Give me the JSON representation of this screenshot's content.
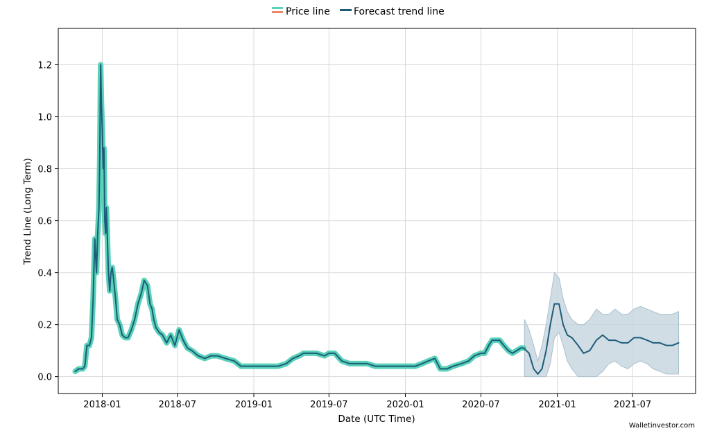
{
  "colors": {
    "price": "#59d2b8",
    "price_legend_top": "#59d2b8",
    "price_legend_bottom": "#e8896a",
    "trend": "#1d5b79",
    "band": "#c5d5df",
    "band_edge": "#a9bfcd"
  },
  "legend": {
    "price_label": "Price line",
    "trend_label": "Forecast trend line",
    "placement": "top-center"
  },
  "watermark": "Walletinvestor.com",
  "chart_data": {
    "type": "line",
    "title": "",
    "xlabel": "Date (UTC Time)",
    "ylabel": "Trend Line (Long Term)",
    "xlim": [
      "2017-09-17",
      "2021-11-30"
    ],
    "ylim": [
      -0.065,
      1.34
    ],
    "grid": true,
    "x_ticks": [
      "2018-01-01",
      "2018-07-01",
      "2019-01-01",
      "2019-07-01",
      "2020-01-01",
      "2020-07-01",
      "2021-01-01",
      "2021-07-01"
    ],
    "x_tick_labels": [
      "2018-01",
      "2018-07",
      "2019-01",
      "2019-07",
      "2020-01",
      "2020-07",
      "2021-01",
      "2021-07"
    ],
    "y_ticks": [
      0.0,
      0.2,
      0.4,
      0.6,
      0.8,
      1.0,
      1.2
    ],
    "y_tick_labels": [
      "0.0",
      "0.2",
      "0.4",
      "0.6",
      "0.8",
      "1.0",
      "1.2"
    ],
    "series": [
      {
        "name": "Price line",
        "x": [
          "2017-10-28",
          "2017-11-05",
          "2017-11-15",
          "2017-11-20",
          "2017-11-25",
          "2017-12-01",
          "2017-12-06",
          "2017-12-10",
          "2017-12-14",
          "2017-12-18",
          "2017-12-21",
          "2017-12-24",
          "2017-12-26",
          "2017-12-28",
          "2017-12-30",
          "2018-01-01",
          "2018-01-03",
          "2018-01-05",
          "2018-01-07",
          "2018-01-09",
          "2018-01-11",
          "2018-01-13",
          "2018-01-16",
          "2018-01-19",
          "2018-01-22",
          "2018-01-25",
          "2018-01-28",
          "2018-02-02",
          "2018-02-06",
          "2018-02-12",
          "2018-02-18",
          "2018-02-25",
          "2018-03-04",
          "2018-03-12",
          "2018-03-20",
          "2018-03-28",
          "2018-04-05",
          "2018-04-12",
          "2018-04-20",
          "2018-04-26",
          "2018-05-01",
          "2018-05-05",
          "2018-05-10",
          "2018-05-18",
          "2018-05-26",
          "2018-06-05",
          "2018-06-15",
          "2018-06-25",
          "2018-07-05",
          "2018-07-15",
          "2018-07-25",
          "2018-08-05",
          "2018-08-20",
          "2018-09-05",
          "2018-09-20",
          "2018-10-05",
          "2018-10-25",
          "2018-11-15",
          "2018-12-01",
          "2018-12-15",
          "2019-01-01",
          "2019-01-20",
          "2019-02-10",
          "2019-03-01",
          "2019-03-20",
          "2019-04-05",
          "2019-04-20",
          "2019-05-01",
          "2019-05-15",
          "2019-06-01",
          "2019-06-20",
          "2019-07-01",
          "2019-07-15",
          "2019-08-01",
          "2019-08-20",
          "2019-09-10",
          "2019-10-01",
          "2019-10-20",
          "2019-11-10",
          "2019-12-01",
          "2019-12-20",
          "2020-01-10",
          "2020-01-25",
          "2020-02-10",
          "2020-02-25",
          "2020-03-12",
          "2020-03-25",
          "2020-04-10",
          "2020-04-25",
          "2020-05-15",
          "2020-06-01",
          "2020-06-15",
          "2020-07-01",
          "2020-07-10",
          "2020-07-20",
          "2020-07-28",
          "2020-08-05",
          "2020-08-15",
          "2020-08-25",
          "2020-09-05",
          "2020-09-15",
          "2020-09-25",
          "2020-10-05",
          "2020-10-12"
        ],
        "y": [
          0.02,
          0.03,
          0.03,
          0.04,
          0.12,
          0.12,
          0.15,
          0.3,
          0.53,
          0.4,
          0.55,
          0.65,
          0.85,
          1.2,
          1.05,
          0.95,
          0.8,
          0.88,
          0.6,
          0.55,
          0.65,
          0.55,
          0.4,
          0.33,
          0.4,
          0.42,
          0.38,
          0.3,
          0.22,
          0.2,
          0.16,
          0.15,
          0.15,
          0.18,
          0.22,
          0.28,
          0.32,
          0.37,
          0.35,
          0.28,
          0.26,
          0.22,
          0.19,
          0.17,
          0.16,
          0.13,
          0.16,
          0.12,
          0.18,
          0.14,
          0.11,
          0.1,
          0.08,
          0.07,
          0.08,
          0.08,
          0.07,
          0.06,
          0.04,
          0.04,
          0.04,
          0.04,
          0.04,
          0.04,
          0.05,
          0.07,
          0.08,
          0.09,
          0.09,
          0.09,
          0.08,
          0.09,
          0.09,
          0.06,
          0.05,
          0.05,
          0.05,
          0.04,
          0.04,
          0.04,
          0.04,
          0.04,
          0.04,
          0.05,
          0.06,
          0.07,
          0.03,
          0.03,
          0.04,
          0.05,
          0.06,
          0.08,
          0.09,
          0.09,
          0.12,
          0.14,
          0.14,
          0.14,
          0.12,
          0.1,
          0.09,
          0.1,
          0.11,
          0.11
        ]
      },
      {
        "name": "Forecast trend line",
        "x": [
          "2017-10-28",
          "2017-11-05",
          "2017-11-15",
          "2017-11-20",
          "2017-11-25",
          "2017-12-01",
          "2017-12-06",
          "2017-12-10",
          "2017-12-14",
          "2017-12-18",
          "2017-12-21",
          "2017-12-24",
          "2017-12-26",
          "2017-12-28",
          "2017-12-30",
          "2018-01-01",
          "2018-01-03",
          "2018-01-05",
          "2018-01-07",
          "2018-01-09",
          "2018-01-11",
          "2018-01-13",
          "2018-01-16",
          "2018-01-19",
          "2018-01-22",
          "2018-01-25",
          "2018-01-28",
          "2018-02-02",
          "2018-02-06",
          "2018-02-12",
          "2018-02-18",
          "2018-02-25",
          "2018-03-04",
          "2018-03-12",
          "2018-03-20",
          "2018-03-28",
          "2018-04-05",
          "2018-04-12",
          "2018-04-20",
          "2018-04-26",
          "2018-05-01",
          "2018-05-05",
          "2018-05-10",
          "2018-05-18",
          "2018-05-26",
          "2018-06-05",
          "2018-06-15",
          "2018-06-25",
          "2018-07-05",
          "2018-07-15",
          "2018-07-25",
          "2018-08-05",
          "2018-08-20",
          "2018-09-05",
          "2018-09-20",
          "2018-10-05",
          "2018-10-25",
          "2018-11-15",
          "2018-12-01",
          "2018-12-15",
          "2019-01-01",
          "2019-01-20",
          "2019-02-10",
          "2019-03-01",
          "2019-03-20",
          "2019-04-05",
          "2019-04-20",
          "2019-05-01",
          "2019-05-15",
          "2019-06-01",
          "2019-06-20",
          "2019-07-01",
          "2019-07-15",
          "2019-08-01",
          "2019-08-20",
          "2019-09-10",
          "2019-10-01",
          "2019-10-20",
          "2019-11-10",
          "2019-12-01",
          "2019-12-20",
          "2020-01-10",
          "2020-01-25",
          "2020-02-10",
          "2020-02-25",
          "2020-03-12",
          "2020-03-25",
          "2020-04-10",
          "2020-04-25",
          "2020-05-15",
          "2020-06-01",
          "2020-06-15",
          "2020-07-01",
          "2020-07-10",
          "2020-07-20",
          "2020-07-28",
          "2020-08-05",
          "2020-08-15",
          "2020-08-25",
          "2020-09-05",
          "2020-09-15",
          "2020-09-25",
          "2020-10-05",
          "2020-10-12",
          "2020-10-25",
          "2020-11-05",
          "2020-11-15",
          "2020-11-25",
          "2020-12-05",
          "2020-12-15",
          "2020-12-25",
          "2021-01-05",
          "2021-01-15",
          "2021-01-25",
          "2021-02-05",
          "2021-02-20",
          "2021-03-05",
          "2021-03-20",
          "2021-04-05",
          "2021-04-20",
          "2021-05-05",
          "2021-05-20",
          "2021-06-05",
          "2021-06-20",
          "2021-07-05",
          "2021-07-20",
          "2021-08-05",
          "2021-08-20",
          "2021-09-05",
          "2021-09-20",
          "2021-10-05",
          "2021-10-20"
        ],
        "y": [
          0.02,
          0.03,
          0.03,
          0.04,
          0.12,
          0.12,
          0.15,
          0.3,
          0.53,
          0.4,
          0.55,
          0.65,
          0.85,
          1.2,
          1.05,
          0.95,
          0.8,
          0.88,
          0.6,
          0.55,
          0.65,
          0.55,
          0.4,
          0.33,
          0.4,
          0.42,
          0.38,
          0.3,
          0.22,
          0.2,
          0.16,
          0.15,
          0.15,
          0.18,
          0.22,
          0.28,
          0.32,
          0.37,
          0.35,
          0.28,
          0.26,
          0.22,
          0.19,
          0.17,
          0.16,
          0.13,
          0.16,
          0.12,
          0.18,
          0.14,
          0.11,
          0.1,
          0.08,
          0.07,
          0.08,
          0.08,
          0.07,
          0.06,
          0.04,
          0.04,
          0.04,
          0.04,
          0.04,
          0.04,
          0.05,
          0.07,
          0.08,
          0.09,
          0.09,
          0.09,
          0.08,
          0.09,
          0.09,
          0.06,
          0.05,
          0.05,
          0.05,
          0.04,
          0.04,
          0.04,
          0.04,
          0.04,
          0.04,
          0.05,
          0.06,
          0.07,
          0.03,
          0.03,
          0.04,
          0.05,
          0.06,
          0.08,
          0.09,
          0.09,
          0.12,
          0.14,
          0.14,
          0.14,
          0.12,
          0.1,
          0.09,
          0.1,
          0.11,
          0.11,
          0.09,
          0.03,
          0.01,
          0.03,
          0.1,
          0.2,
          0.28,
          0.28,
          0.2,
          0.16,
          0.15,
          0.12,
          0.09,
          0.1,
          0.14,
          0.16,
          0.14,
          0.14,
          0.13,
          0.13,
          0.15,
          0.15,
          0.14,
          0.13,
          0.13,
          0.12,
          0.12,
          0.13
        ]
      }
    ],
    "confidence_band": {
      "x": [
        "2020-10-14",
        "2020-10-25",
        "2020-11-05",
        "2020-11-15",
        "2020-11-25",
        "2020-12-05",
        "2020-12-15",
        "2020-12-25",
        "2021-01-05",
        "2021-01-15",
        "2021-01-25",
        "2021-02-05",
        "2021-02-20",
        "2021-03-05",
        "2021-03-20",
        "2021-04-05",
        "2021-04-20",
        "2021-05-05",
        "2021-05-20",
        "2021-06-05",
        "2021-06-20",
        "2021-07-05",
        "2021-07-20",
        "2021-08-05",
        "2021-08-20",
        "2021-09-05",
        "2021-09-20",
        "2021-10-05",
        "2021-10-20"
      ],
      "lower": [
        0.0,
        0.0,
        0.0,
        0.0,
        0.0,
        0.0,
        0.05,
        0.15,
        0.17,
        0.12,
        0.06,
        0.03,
        0.0,
        0.0,
        0.0,
        0.0,
        0.02,
        0.05,
        0.06,
        0.04,
        0.03,
        0.05,
        0.06,
        0.05,
        0.03,
        0.02,
        0.01,
        0.01,
        0.01
      ],
      "upper": [
        0.22,
        0.18,
        0.12,
        0.06,
        0.12,
        0.2,
        0.3,
        0.4,
        0.38,
        0.3,
        0.25,
        0.22,
        0.2,
        0.2,
        0.22,
        0.26,
        0.24,
        0.24,
        0.26,
        0.24,
        0.24,
        0.26,
        0.27,
        0.26,
        0.25,
        0.24,
        0.24,
        0.24,
        0.25
      ]
    }
  }
}
